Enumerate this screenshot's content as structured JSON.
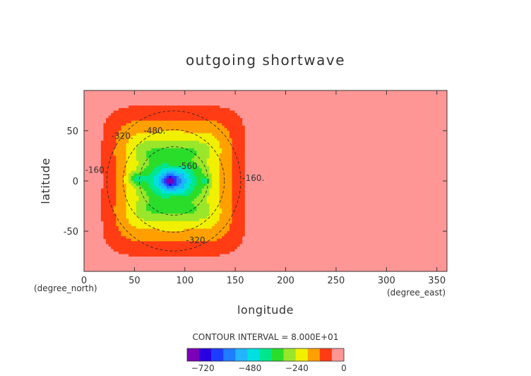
{
  "chart_data": {
    "type": "heatmap",
    "title": "outgoing shortwave",
    "xlabel": "longitude",
    "ylabel": "latitude",
    "x_unit_label": "(degree_east)",
    "y_unit_label": "(degree_north)",
    "xlim": [
      0,
      360
    ],
    "ylim": [
      -90,
      90
    ],
    "xticks": [
      0,
      50,
      100,
      150,
      200,
      250,
      300,
      350
    ],
    "yticks": [
      -50,
      0,
      50
    ],
    "contour_interval_text": "CONTOUR INTERVAL = 8.000E+01",
    "contour_labels": [
      {
        "text": "-480.",
        "lon": 70,
        "lat": 47
      },
      {
        "text": "-320.",
        "lon": 38,
        "lat": 42
      },
      {
        "text": "-160.",
        "lon": 12,
        "lat": 8
      },
      {
        "text": "-160.",
        "lon": 168,
        "lat": 0
      },
      {
        "text": "-320.",
        "lon": 112,
        "lat": -62
      },
      {
        "text": "-560",
        "lon": 103,
        "lat": 12
      }
    ],
    "field": {
      "description_values": "outgoing shortwave flux, minimum near lon 85, lat 0",
      "center": {
        "lon": 85,
        "lat": 0
      },
      "extent_lon": [
        8,
        170
      ],
      "extent_lat": [
        -85,
        85
      ],
      "background_value": 0,
      "minimum_value": -800
    },
    "colorbar": {
      "colors": [
        "#7b00b8",
        "#2a00e0",
        "#1e3cff",
        "#1e7cff",
        "#22b4ff",
        "#00e0e0",
        "#00e68c",
        "#2add2a",
        "#9ae62a",
        "#f0f000",
        "#ffa000",
        "#ff3c14",
        "#ff9696"
      ],
      "tick_labels": [
        "-720",
        "-480",
        "-240",
        "0"
      ],
      "tick_values": [
        -720,
        -480,
        -240,
        0
      ],
      "range": [
        -800,
        0
      ]
    }
  }
}
